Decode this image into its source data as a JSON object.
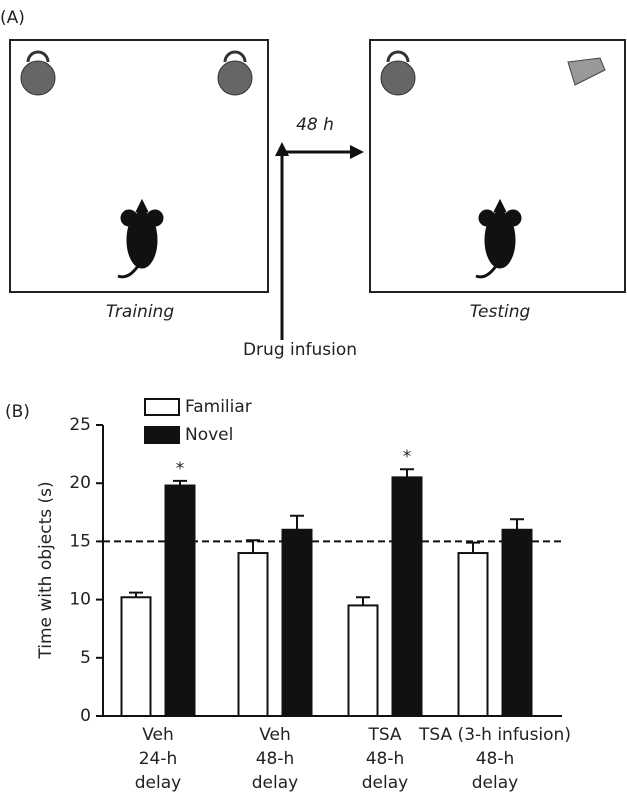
{
  "panel_a": {
    "label": "(A)",
    "delay": "48 h",
    "training": "Training",
    "testing": "Testing",
    "drug": "Drug infusion"
  },
  "chart_data": {
    "type": "bar",
    "panel_label": "(B)",
    "y_label": "Time with objects (s)",
    "categories": [
      [
        "Veh",
        "24-h",
        "delay"
      ],
      [
        "Veh",
        "48-h",
        "delay"
      ],
      [
        "TSA",
        "48-h",
        "delay"
      ],
      [
        "TSA (3-h infusion)",
        "48-h",
        "delay"
      ]
    ],
    "series": [
      {
        "name": "Familiar",
        "color": "#ffffff",
        "values": [
          10.2,
          14.0,
          9.5,
          14.0
        ],
        "errors": [
          0.4,
          1.1,
          0.7,
          0.9
        ]
      },
      {
        "name": "Novel",
        "color": "#111111",
        "values": [
          19.8,
          16.0,
          20.5,
          16.0
        ],
        "errors": [
          0.4,
          1.2,
          0.7,
          0.9
        ],
        "significance": [
          "*",
          null,
          "*",
          null
        ]
      }
    ],
    "reference_line": 15,
    "ylim": [
      0,
      25
    ],
    "yticks": [
      0,
      5,
      10,
      15,
      20,
      25
    ],
    "legend": "top-left"
  }
}
